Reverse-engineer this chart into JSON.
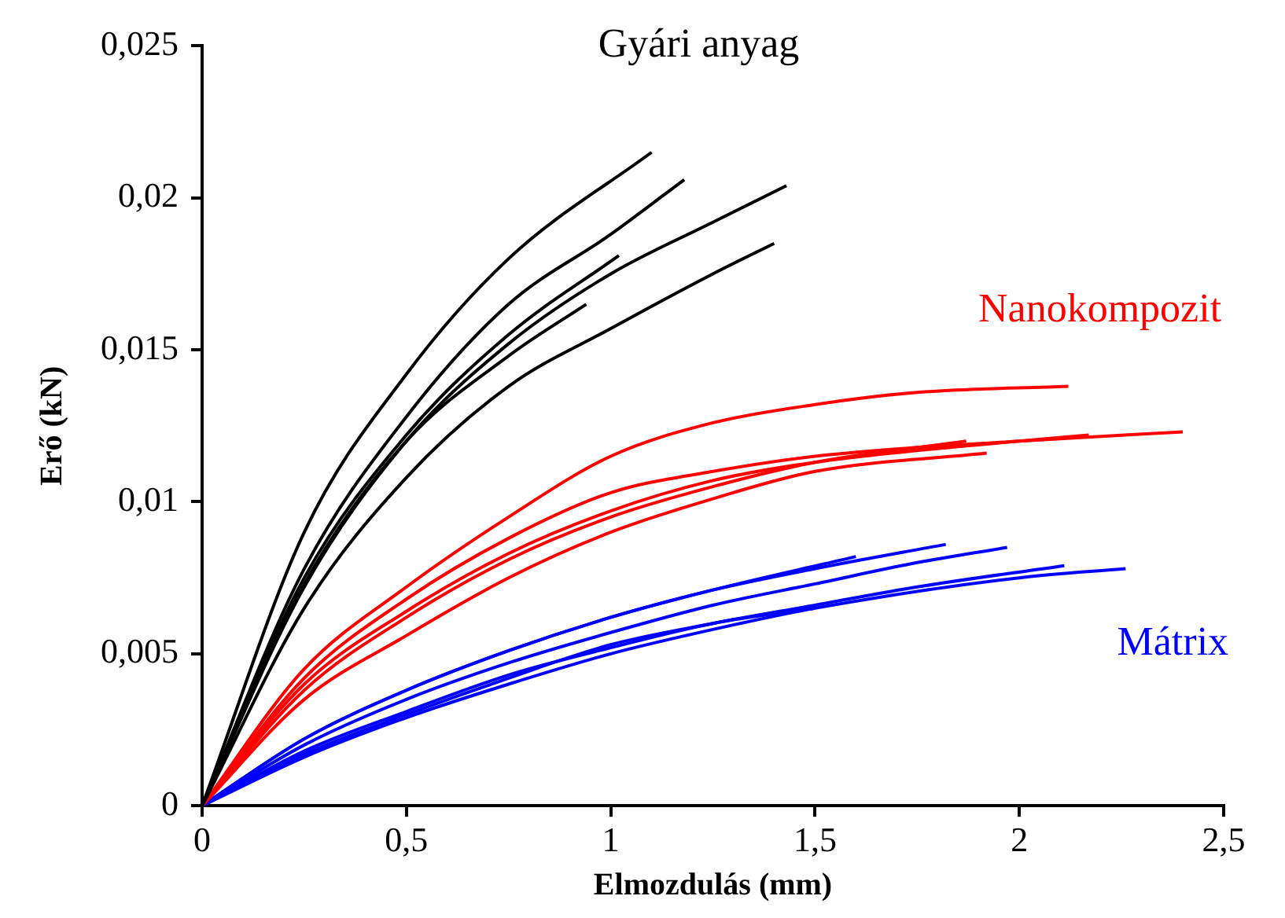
{
  "chart_data": {
    "type": "line",
    "xlabel": "Elmozdulás (mm)",
    "ylabel": "Erő (kN)",
    "xlim": [
      0,
      2.5
    ],
    "ylim": [
      0,
      0.025
    ],
    "xticks": [
      0,
      {
        "value": 0.5,
        "label": "0,5"
      },
      1,
      {
        "value": 1.5,
        "label": "1,5"
      },
      2,
      {
        "value": 2.5,
        "label": "2,5"
      }
    ],
    "yticks": [
      0,
      {
        "value": 0.005,
        "label": "0,005"
      },
      {
        "value": 0.01,
        "label": "0,01"
      },
      {
        "value": 0.015,
        "label": "0,015"
      },
      {
        "value": 0.02,
        "label": "0,02"
      },
      {
        "value": 0.025,
        "label": "0,025"
      }
    ],
    "grid": false,
    "legend": false,
    "marker": "none",
    "series": [
      {
        "name": "Gyári anyag",
        "color": "#000000",
        "x": [
          0,
          0.25,
          0.5,
          0.75,
          1.1
        ],
        "values": [
          0,
          0.009,
          0.0142,
          0.018,
          0.0215
        ]
      },
      {
        "color": "#000000",
        "x": [
          0,
          0.25,
          0.5,
          0.75,
          1,
          1.18
        ],
        "values": [
          0,
          0.0078,
          0.0128,
          0.0165,
          0.0188,
          0.0206
        ]
      },
      {
        "color": "#000000",
        "x": [
          0,
          0.25,
          0.5,
          0.75,
          1.02
        ],
        "values": [
          0,
          0.0075,
          0.0122,
          0.0155,
          0.0181
        ]
      },
      {
        "color": "#000000",
        "x": [
          0,
          0.25,
          0.5,
          0.75,
          0.94
        ],
        "values": [
          0,
          0.0073,
          0.012,
          0.0148,
          0.0165
        ]
      },
      {
        "color": "#000000",
        "x": [
          0,
          0.25,
          0.5,
          0.75,
          1,
          1.25,
          1.43
        ],
        "values": [
          0,
          0.0072,
          0.012,
          0.0152,
          0.0175,
          0.0192,
          0.0204
        ]
      },
      {
        "color": "#000000",
        "x": [
          0,
          0.25,
          0.5,
          0.75,
          1,
          1.25,
          1.4
        ],
        "values": [
          0,
          0.0065,
          0.0108,
          0.0138,
          0.0157,
          0.0175,
          0.0185
        ]
      },
      {
        "name": "Nanokompozit",
        "color": "#ff0000",
        "x": [
          0,
          0.25,
          0.5,
          0.75,
          1,
          1.25,
          1.5,
          1.75,
          2.12
        ],
        "values": [
          0,
          0.0045,
          0.0072,
          0.0095,
          0.0115,
          0.0126,
          0.0132,
          0.0136,
          0.0138
        ]
      },
      {
        "color": "#ff0000",
        "x": [
          0,
          0.25,
          0.5,
          0.75,
          1,
          1.25,
          1.5,
          2,
          2.4
        ],
        "values": [
          0,
          0.0042,
          0.0068,
          0.0088,
          0.0103,
          0.011,
          0.0115,
          0.012,
          0.0123
        ]
      },
      {
        "color": "#ff0000",
        "x": [
          0,
          0.25,
          0.5,
          0.75,
          1,
          1.25,
          1.5,
          2,
          2.17
        ],
        "values": [
          0,
          0.004,
          0.0064,
          0.0083,
          0.0097,
          0.0107,
          0.0113,
          0.012,
          0.0122
        ]
      },
      {
        "color": "#ff0000",
        "x": [
          0,
          0.25,
          0.5,
          0.75,
          1,
          1.25,
          1.5,
          1.87
        ],
        "values": [
          0,
          0.0038,
          0.0062,
          0.0081,
          0.0095,
          0.0105,
          0.0113,
          0.012
        ]
      },
      {
        "color": "#ff0000",
        "x": [
          0,
          0.25,
          0.5,
          0.75,
          1,
          1.25,
          1.5,
          1.92
        ],
        "values": [
          0,
          0.0035,
          0.0056,
          0.0075,
          0.009,
          0.0101,
          0.011,
          0.0116
        ]
      },
      {
        "color": "#0000ff",
        "x": [
          0,
          0.25,
          0.5,
          0.75,
          1,
          1.25,
          1.5,
          1.82
        ],
        "values": [
          0,
          0.0022,
          0.0038,
          0.0051,
          0.0062,
          0.0071,
          0.0078,
          0.0086
        ]
      },
      {
        "color": "#0000ff",
        "x": [
          0,
          0.25,
          0.5,
          0.75,
          1,
          1.25,
          1.6
        ],
        "values": [
          0,
          0.0022,
          0.0038,
          0.0051,
          0.0062,
          0.0071,
          0.0082
        ]
      },
      {
        "color": "#0000ff",
        "x": [
          0,
          0.25,
          0.5,
          0.75,
          1,
          1.25,
          1.5,
          1.75,
          1.97
        ],
        "values": [
          0,
          0.002,
          0.0035,
          0.0047,
          0.0057,
          0.0066,
          0.0073,
          0.008,
          0.0085
        ]
      },
      {
        "color": "#0000ff",
        "x": [
          0,
          0.25,
          0.5,
          0.75,
          1,
          1.25,
          1.5,
          1.75,
          2.11
        ],
        "values": [
          0,
          0.0017,
          0.003,
          0.0042,
          0.0053,
          0.006,
          0.0066,
          0.0072,
          0.0079
        ]
      },
      {
        "name": "Mátrix",
        "color": "#0000ff",
        "x": [
          0,
          0.25,
          0.5,
          0.75,
          1,
          1.25,
          1.5,
          2,
          2.26
        ],
        "values": [
          0,
          0.0016,
          0.0029,
          0.004,
          0.005,
          0.0058,
          0.0065,
          0.0075,
          0.0078
        ]
      },
      {
        "color": "#0000ff",
        "x": [
          0,
          0.25,
          0.5,
          0.75,
          1,
          1.25,
          1.5
        ],
        "values": [
          0,
          0.0018,
          0.0031,
          0.0043,
          0.0052,
          0.006,
          0.0065
        ]
      }
    ]
  }
}
